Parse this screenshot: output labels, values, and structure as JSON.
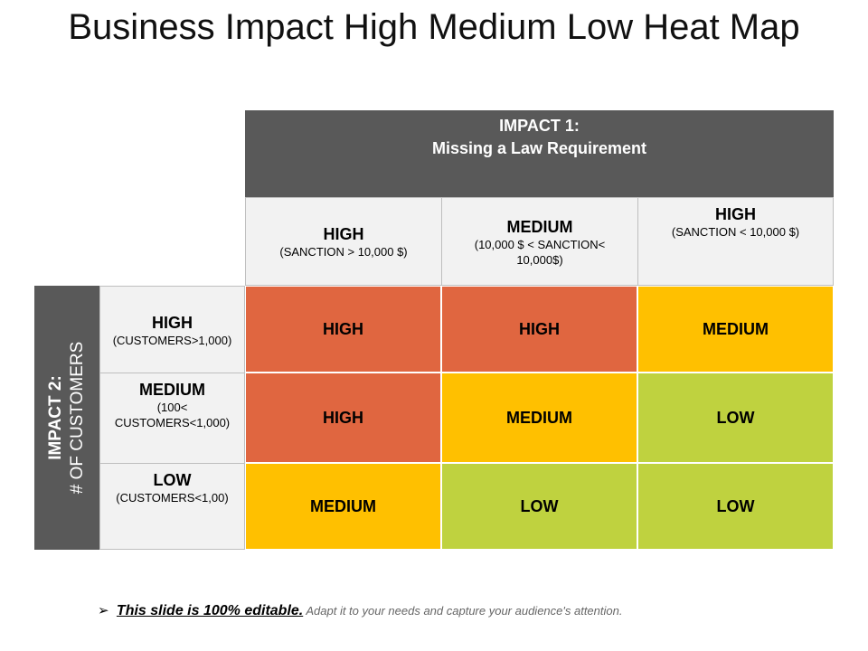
{
  "title": "Business Impact High Medium Low Heat Map",
  "impact1": {
    "line1": "IMPACT 1:",
    "line2": "Missing a Law Requirement"
  },
  "impact2": {
    "line1": "IMPACT 2:",
    "line2": "# OF CUSTOMERS"
  },
  "columns": [
    {
      "level": "HIGH",
      "desc": "(SANCTION  > 10,000 $)"
    },
    {
      "level": "MEDIUM",
      "desc": "(10,000 $ < SANCTION< 10,000$)"
    },
    {
      "level": "HIGH",
      "desc": "(SANCTION  < 10,000 $)"
    }
  ],
  "rows": [
    {
      "level": "HIGH",
      "desc": "(CUSTOMERS>1,000)",
      "cells": [
        "HIGH",
        "HIGH",
        "MEDIUM"
      ]
    },
    {
      "level": "MEDIUM",
      "desc": "(100< CUSTOMERS<1,000)",
      "cells": [
        "HIGH",
        "MEDIUM",
        "LOW"
      ]
    },
    {
      "level": "LOW",
      "desc": "(CUSTOMERS<1,00)",
      "cells": [
        "MEDIUM",
        "LOW",
        "LOW"
      ]
    }
  ],
  "colors": {
    "HIGH": "#e06640",
    "MEDIUM": "#ffc000",
    "LOW": "#bfd23f",
    "header": "#595959",
    "label_bg": "#f2f2f2"
  },
  "footer": {
    "bullet": "➢",
    "bold": "This slide is 100% editable.",
    "note": " Adapt it to your needs and capture your audience's attention."
  }
}
